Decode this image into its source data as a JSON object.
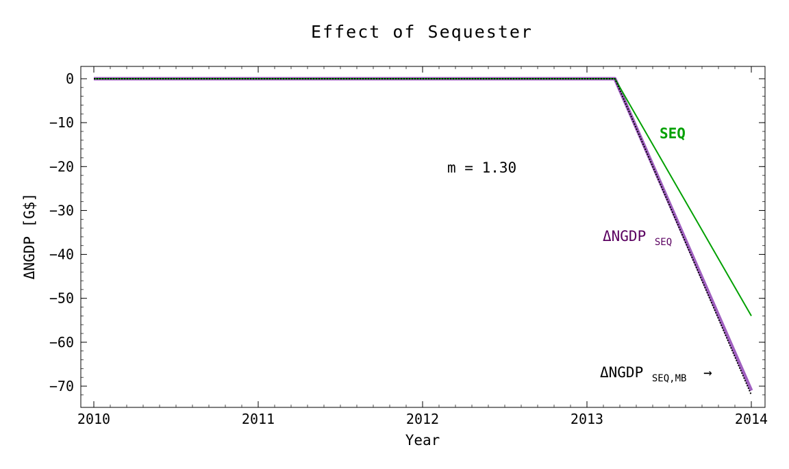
{
  "chart_data": {
    "type": "line",
    "title": "Effect of Sequester",
    "xlabel": "Year",
    "ylabel": "ΔNGDP  [G$]",
    "xlim": [
      2010,
      2014
    ],
    "ylim": [
      -75,
      3
    ],
    "x_ticks": [
      2010,
      2011,
      2012,
      2013,
      2014
    ],
    "x_tick_labels": [
      "2010",
      "2011",
      "2012",
      "2013",
      "2014"
    ],
    "y_ticks": [
      0,
      -10,
      -20,
      -30,
      -40,
      -50,
      -60,
      -70
    ],
    "y_tick_labels": [
      "0",
      "−10",
      "−20",
      "−30",
      "−40",
      "−50",
      "−60",
      "−70"
    ],
    "grid": false,
    "series": [
      {
        "name": "SEQ",
        "color": "#00a000",
        "x": [
          2010.0,
          2013.17,
          2014.0
        ],
        "y": [
          0,
          0,
          -54
        ]
      },
      {
        "name": "ΔNGDP_SEQ",
        "color": "#a060c0",
        "x": [
          2010.0,
          2013.17,
          2014.0
        ],
        "y": [
          0,
          0,
          -71
        ]
      },
      {
        "name": "ΔNGDP_SEQ,MB",
        "color": "#000000",
        "style": "dotted",
        "x": [
          2010.0,
          2013.17,
          2014.0
        ],
        "y": [
          0,
          0,
          -72
        ]
      }
    ],
    "annotations": {
      "m_label": "m  =  1.30",
      "seq_label": "SEQ",
      "ngdp_seq_main": "ΔNGDP",
      "ngdp_seq_sub": "SEQ",
      "ngdp_mb_main": "ΔNGDP",
      "ngdp_mb_sub": "SEQ,MB",
      "ngdp_mb_arrow": "→",
      "seq_color": "#00a000",
      "ngdp_seq_color": "#5a0060",
      "ngdp_mb_color": "#000000"
    }
  }
}
